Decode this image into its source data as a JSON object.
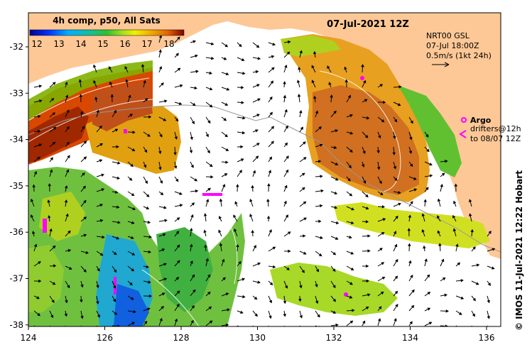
{
  "map": {
    "date_title": "07-Jul-2021 12Z",
    "colorbar": {
      "title": "4h comp, p50, All Sats",
      "ticks": [
        "12",
        "13",
        "14",
        "15",
        "16",
        "17",
        "18"
      ]
    },
    "current_legend": {
      "model": "NRT00 GSL",
      "valid_time": "07-Jul 18:00Z",
      "scale": "0.5m/s (1kt 24h)"
    },
    "argo_legend": {
      "title": "Argo",
      "line1": "drifters@12h",
      "line2": "to 08/07 12Z"
    },
    "side_label": "© IMOS 11-Jul-2021 12:22 Hobart",
    "lat_ticks": [
      "-32",
      "-33",
      "-34",
      "-35",
      "-36",
      "-37",
      "-38"
    ],
    "lon_ticks": [
      "124",
      "126",
      "128",
      "130",
      "132",
      "134",
      "136"
    ],
    "colors": {
      "land": "#fdc896",
      "coast": "#555555",
      "arrow": "#000000",
      "argo": "#ff00ff"
    }
  }
}
